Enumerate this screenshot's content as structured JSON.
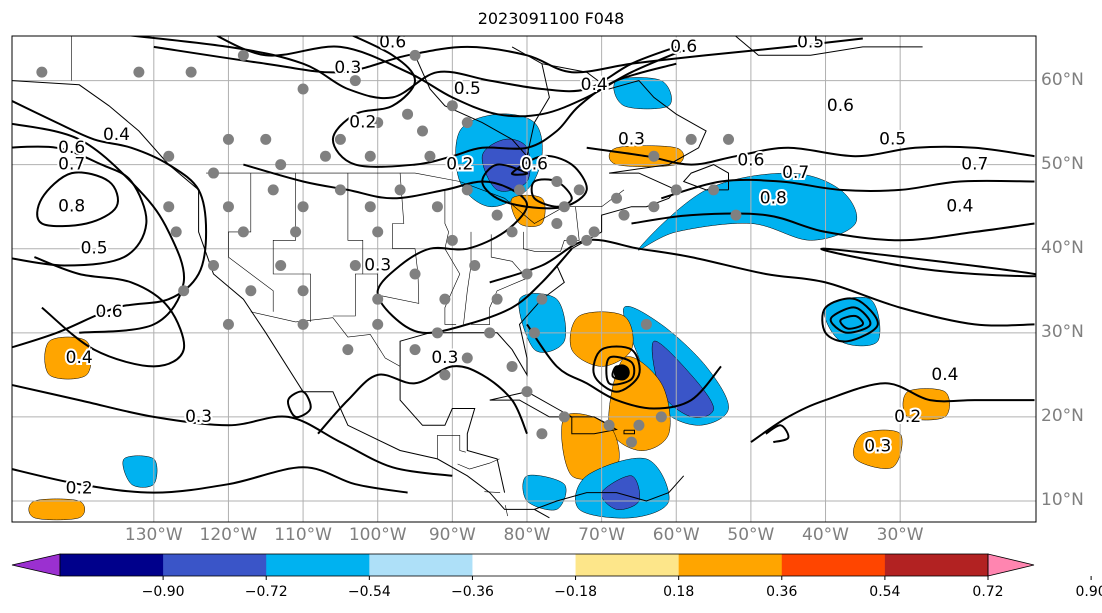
{
  "title": "2023091100 F048",
  "latitude_labels": [
    {
      "label": "60°N",
      "lat": 60
    },
    {
      "label": "50°N",
      "lat": 50
    },
    {
      "label": "40°N",
      "lat": 40
    },
    {
      "label": "30°N",
      "lat": 30
    },
    {
      "label": "20°N",
      "lat": 20
    },
    {
      "label": "10°N",
      "lat": 10
    }
  ],
  "longitude_labels": [
    {
      "label": "130°W",
      "lon": -130
    },
    {
      "label": "120°W",
      "lon": -120
    },
    {
      "label": "110°W",
      "lon": -110
    },
    {
      "label": "100°W",
      "lon": -100
    },
    {
      "label": "90°W",
      "lon": -90
    },
    {
      "label": "80°W",
      "lon": -80
    },
    {
      "label": "70°W",
      "lon": -70
    },
    {
      "label": "60°W",
      "lon": -60
    },
    {
      "label": "50°W",
      "lon": -50
    },
    {
      "label": "40°W",
      "lon": -40
    },
    {
      "label": "30°W",
      "lon": -30
    }
  ],
  "colorbar": {
    "ticks": [
      "−0.90",
      "−0.72",
      "−0.54",
      "−0.36",
      "−0.18",
      "0.18",
      "0.36",
      "0.54",
      "0.72",
      "0.90"
    ],
    "colors": [
      "#9b30d0",
      "#00008b",
      "#3a55c8",
      "#00b2f0",
      "#aee0f8",
      "#ffffff",
      "#fde68a",
      "#ffa500",
      "#ff4500",
      "#b22222",
      "#ff85b0"
    ]
  },
  "contour_labels": [
    {
      "text": "0.6",
      "lon": -98,
      "lat": 64.5
    },
    {
      "text": "0.3",
      "lon": -104,
      "lat": 61.5
    },
    {
      "text": "0.5",
      "lon": -88,
      "lat": 59
    },
    {
      "text": "0.2",
      "lon": -102,
      "lat": 55
    },
    {
      "text": "0.4",
      "lon": -71,
      "lat": 59.5
    },
    {
      "text": "0.6",
      "lon": -59,
      "lat": 64
    },
    {
      "text": "0.5",
      "lon": -42,
      "lat": 64.5
    },
    {
      "text": "0.6",
      "lon": -38,
      "lat": 57
    },
    {
      "text": "0.3",
      "lon": -66,
      "lat": 53
    },
    {
      "text": "0.5",
      "lon": -31,
      "lat": 53
    },
    {
      "text": "0.2",
      "lon": -89,
      "lat": 50
    },
    {
      "text": "0.6",
      "lon": -79,
      "lat": 50
    },
    {
      "text": "0.6",
      "lon": -50,
      "lat": 50.5
    },
    {
      "text": "0.7",
      "lon": -44,
      "lat": 49
    },
    {
      "text": "0.8",
      "lon": -47,
      "lat": 46
    },
    {
      "text": "0.7",
      "lon": -20,
      "lat": 50
    },
    {
      "text": "0.4",
      "lon": -22,
      "lat": 45
    },
    {
      "text": "0.6",
      "lon": -141,
      "lat": 52
    },
    {
      "text": "0.7",
      "lon": -141,
      "lat": 50
    },
    {
      "text": "0.4",
      "lon": -135,
      "lat": 53.5
    },
    {
      "text": "0.8",
      "lon": -141,
      "lat": 45
    },
    {
      "text": "0.5",
      "lon": -138,
      "lat": 40
    },
    {
      "text": "0.3",
      "lon": -100,
      "lat": 38
    },
    {
      "text": "0.6",
      "lon": -136,
      "lat": 32.5
    },
    {
      "text": "0.4",
      "lon": -140,
      "lat": 27
    },
    {
      "text": "0.3",
      "lon": -91,
      "lat": 27
    },
    {
      "text": "0.3",
      "lon": -124,
      "lat": 20
    },
    {
      "text": "0.2",
      "lon": -140,
      "lat": 11.5
    },
    {
      "text": "0.4",
      "lon": -24,
      "lat": 25
    },
    {
      "text": "0.2",
      "lon": -29,
      "lat": 20
    },
    {
      "text": "0.3",
      "lon": -33,
      "lat": 16.5
    }
  ],
  "observation_sites": [
    [
      -145,
      61
    ],
    [
      -132,
      61
    ],
    [
      -125,
      61
    ],
    [
      -118,
      63
    ],
    [
      -110,
      59
    ],
    [
      -103,
      60
    ],
    [
      -95,
      63
    ],
    [
      -90,
      57
    ],
    [
      -96,
      56
    ],
    [
      -120,
      53
    ],
    [
      -115,
      53
    ],
    [
      -105,
      53
    ],
    [
      -100,
      55
    ],
    [
      -94,
      54
    ],
    [
      -88,
      55
    ],
    [
      -128,
      51
    ],
    [
      -113,
      50
    ],
    [
      -107,
      51
    ],
    [
      -101,
      51
    ],
    [
      -93,
      51
    ],
    [
      -122,
      49
    ],
    [
      -114,
      47
    ],
    [
      -105,
      47
    ],
    [
      -97,
      47
    ],
    [
      -88,
      47
    ],
    [
      -81,
      47
    ],
    [
      -76,
      48
    ],
    [
      -73,
      47
    ],
    [
      -128,
      45
    ],
    [
      -120,
      45
    ],
    [
      -110,
      45
    ],
    [
      -101,
      45
    ],
    [
      -92,
      45
    ],
    [
      -84,
      44
    ],
    [
      -76,
      43
    ],
    [
      -71,
      42
    ],
    [
      -127,
      42
    ],
    [
      -118,
      42
    ],
    [
      -111,
      42
    ],
    [
      -100,
      42
    ],
    [
      -90,
      41
    ],
    [
      -82,
      42
    ],
    [
      -74,
      41
    ],
    [
      -122,
      38
    ],
    [
      -113,
      38
    ],
    [
      -103,
      38
    ],
    [
      -95,
      37
    ],
    [
      -87,
      38
    ],
    [
      -80,
      37
    ],
    [
      -126,
      35
    ],
    [
      -117,
      35
    ],
    [
      -110,
      35
    ],
    [
      -100,
      34
    ],
    [
      -91,
      34
    ],
    [
      -84,
      34
    ],
    [
      -78,
      34
    ],
    [
      -120,
      31
    ],
    [
      -110,
      31
    ],
    [
      -100,
      31
    ],
    [
      -92,
      30
    ],
    [
      -85,
      30
    ],
    [
      -79,
      30
    ],
    [
      -104,
      28
    ],
    [
      -95,
      28
    ],
    [
      -88,
      27
    ],
    [
      -82,
      26
    ],
    [
      -91,
      25
    ],
    [
      -80,
      23
    ],
    [
      -69,
      19
    ],
    [
      -65,
      19
    ],
    [
      -75,
      20
    ],
    [
      -58,
      53
    ],
    [
      -63,
      51
    ],
    [
      -53,
      53
    ],
    [
      -60,
      47
    ],
    [
      -55,
      47
    ],
    [
      -52,
      44
    ],
    [
      -63,
      45
    ],
    [
      -67,
      44
    ],
    [
      -75,
      45
    ],
    [
      -68,
      46
    ],
    [
      -72,
      41
    ],
    [
      -64,
      31
    ],
    [
      -62,
      20
    ],
    [
      -66,
      17
    ],
    [
      -78,
      18
    ]
  ]
}
